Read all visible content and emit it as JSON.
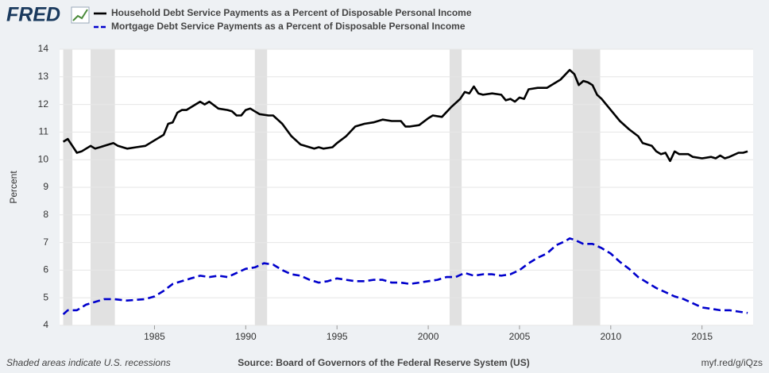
{
  "chart_data": {
    "type": "line",
    "logo": "FRED",
    "ylabel": "Percent",
    "note": "Shaded areas indicate U.S. recessions",
    "source": "Source: Board of Governors of the Federal Reserve System (US)",
    "link": "myf.red/g/iQzs",
    "xlim": [
      1979.8,
      2017.8
    ],
    "ylim": [
      4,
      14
    ],
    "xticks": [
      1985,
      1990,
      1995,
      2000,
      2005,
      2010,
      2015
    ],
    "yticks": [
      4,
      5,
      6,
      7,
      8,
      9,
      10,
      11,
      12,
      13,
      14
    ],
    "grid": true,
    "recession_color": "#e1e1e1",
    "recessions": [
      [
        1980.0,
        1980.5
      ],
      [
        1981.5,
        1982.83
      ],
      [
        1990.5,
        1991.17
      ],
      [
        2001.17,
        2001.83
      ],
      [
        2007.92,
        2009.42
      ]
    ],
    "series": [
      {
        "name": "Household Debt Service Payments as a Percent of Disposable Personal Income",
        "color": "#000000",
        "style": "solid",
        "x": [
          1980.0,
          1980.25,
          1980.5,
          1980.75,
          1981.0,
          1981.5,
          1981.75,
          1982.25,
          1982.75,
          1983.0,
          1983.5,
          1984.0,
          1984.5,
          1985.0,
          1985.5,
          1985.75,
          1986.0,
          1986.25,
          1986.5,
          1986.75,
          1987.0,
          1987.5,
          1987.75,
          1988.0,
          1988.5,
          1989.0,
          1989.25,
          1989.5,
          1989.75,
          1990.0,
          1990.25,
          1990.5,
          1990.75,
          1991.25,
          1991.5,
          1991.75,
          1992.0,
          1992.5,
          1993.0,
          1993.5,
          1993.75,
          1994.0,
          1994.25,
          1994.75,
          1995.0,
          1995.5,
          1996.0,
          1996.5,
          1997.0,
          1997.5,
          1998.0,
          1998.5,
          1998.75,
          1999.0,
          1999.5,
          2000.0,
          2000.25,
          2000.75,
          2001.25,
          2001.75,
          2002.0,
          2002.25,
          2002.5,
          2002.75,
          2003.0,
          2003.5,
          2004.0,
          2004.25,
          2004.5,
          2004.75,
          2005.0,
          2005.25,
          2005.5,
          2006.0,
          2006.5,
          2007.0,
          2007.25,
          2007.75,
          2008.0,
          2008.25,
          2008.5,
          2008.75,
          2009.0,
          2009.25,
          2009.5,
          2010.0,
          2010.5,
          2011.0,
          2011.5,
          2011.75,
          2012.25,
          2012.5,
          2012.75,
          2013.0,
          2013.25,
          2013.5,
          2013.75,
          2014.25,
          2014.5,
          2015.0,
          2015.5,
          2015.75,
          2016.0,
          2016.25,
          2016.5,
          2017.0,
          2017.25,
          2017.5
        ],
        "values": [
          10.65,
          10.75,
          10.5,
          10.25,
          10.3,
          10.5,
          10.4,
          10.5,
          10.6,
          10.5,
          10.4,
          10.45,
          10.5,
          10.7,
          10.9,
          11.3,
          11.35,
          11.7,
          11.8,
          11.8,
          11.9,
          12.1,
          12.0,
          12.1,
          11.85,
          11.8,
          11.75,
          11.6,
          11.6,
          11.8,
          11.85,
          11.75,
          11.65,
          11.6,
          11.6,
          11.45,
          11.3,
          10.85,
          10.55,
          10.45,
          10.4,
          10.45,
          10.4,
          10.45,
          10.6,
          10.85,
          11.2,
          11.3,
          11.35,
          11.45,
          11.4,
          11.4,
          11.2,
          11.2,
          11.25,
          11.5,
          11.6,
          11.55,
          11.9,
          12.2,
          12.45,
          12.4,
          12.65,
          12.4,
          12.35,
          12.4,
          12.35,
          12.15,
          12.2,
          12.1,
          12.25,
          12.2,
          12.55,
          12.6,
          12.6,
          12.8,
          12.9,
          13.25,
          13.1,
          12.7,
          12.85,
          12.8,
          12.7,
          12.35,
          12.2,
          11.8,
          11.4,
          11.1,
          10.85,
          10.6,
          10.5,
          10.3,
          10.2,
          10.25,
          9.95,
          10.3,
          10.2,
          10.2,
          10.1,
          10.05,
          10.1,
          10.05,
          10.15,
          10.05,
          10.1,
          10.25,
          10.25,
          10.3
        ]
      },
      {
        "name": "Mortgage Debt Service Payments as a Percent of Disposable Personal Income",
        "color": "#0000cc",
        "style": "dashed",
        "x": [
          1980.0,
          1980.25,
          1980.75,
          1981.25,
          1981.75,
          1982.25,
          1982.75,
          1983.5,
          1984.5,
          1985.0,
          1985.5,
          1986.0,
          1986.5,
          1987.0,
          1987.5,
          1988.0,
          1988.5,
          1989.0,
          1989.5,
          1990.0,
          1990.5,
          1991.0,
          1991.5,
          1992.0,
          1992.5,
          1993.0,
          1993.5,
          1994.0,
          1994.5,
          1995.0,
          1995.5,
          1996.0,
          1996.5,
          1997.0,
          1997.5,
          1998.0,
          1998.5,
          1999.0,
          1999.5,
          2000.0,
          2000.5,
          2001.0,
          2001.5,
          2002.0,
          2002.5,
          2003.0,
          2003.5,
          2004.0,
          2004.5,
          2005.0,
          2005.5,
          2006.0,
          2006.5,
          2007.0,
          2007.5,
          2007.75,
          2008.0,
          2008.5,
          2009.0,
          2009.5,
          2010.0,
          2010.5,
          2011.0,
          2011.5,
          2012.0,
          2012.5,
          2013.0,
          2013.5,
          2014.0,
          2014.5,
          2015.0,
          2015.5,
          2016.0,
          2016.5,
          2017.0,
          2017.5
        ],
        "values": [
          4.4,
          4.55,
          4.55,
          4.75,
          4.85,
          4.95,
          4.95,
          4.9,
          4.95,
          5.05,
          5.25,
          5.5,
          5.6,
          5.7,
          5.8,
          5.75,
          5.8,
          5.75,
          5.9,
          6.05,
          6.1,
          6.25,
          6.2,
          6.0,
          5.85,
          5.8,
          5.65,
          5.55,
          5.6,
          5.7,
          5.65,
          5.6,
          5.6,
          5.65,
          5.65,
          5.55,
          5.55,
          5.5,
          5.55,
          5.6,
          5.65,
          5.75,
          5.75,
          5.9,
          5.8,
          5.85,
          5.85,
          5.8,
          5.85,
          6.0,
          6.25,
          6.45,
          6.6,
          6.9,
          7.05,
          7.15,
          7.1,
          6.95,
          6.95,
          6.8,
          6.6,
          6.3,
          6.05,
          5.75,
          5.55,
          5.35,
          5.2,
          5.05,
          4.95,
          4.8,
          4.65,
          4.6,
          4.55,
          4.55,
          4.5,
          4.45
        ]
      }
    ]
  }
}
